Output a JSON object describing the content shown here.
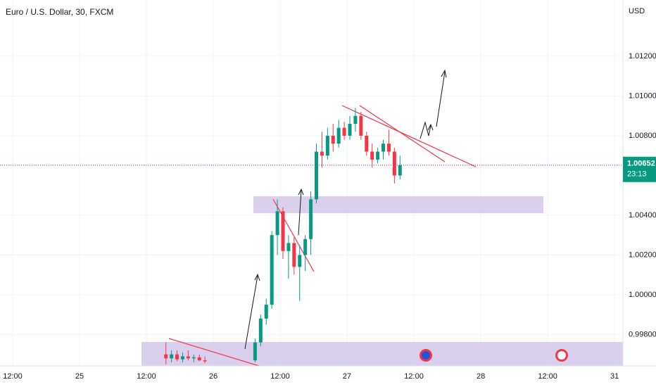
{
  "chart_data": {
    "type": "candlestick",
    "title": "Euro / U.S. Dollar, 30, FXCM",
    "currency": "USD",
    "x": [
      27.5,
      28.5,
      29.5,
      30.5,
      31.5,
      32.5,
      33.5,
      34.5,
      43.5,
      44.5,
      45.5,
      46.5,
      47.5,
      48.5,
      49.5,
      50.5,
      51.5,
      52.5,
      53.5,
      54.5,
      55.5,
      56.5,
      57.5,
      58.5,
      59.5,
      60.5,
      61.5,
      62.5,
      63.5,
      64.5,
      65.5,
      66.5,
      67.5,
      68.5,
      69.5
    ],
    "open": [
      0.997,
      0.9968,
      0.997,
      0.99675,
      0.9969,
      0.9968,
      0.99685,
      0.9967,
      0.9967,
      0.9976,
      0.9988,
      0.9995,
      1.003,
      1.0042,
      1.0022,
      1.0026,
      1.0014,
      1.002,
      1.0028,
      1.0048,
      1.0072,
      1.007,
      1.008,
      1.0076,
      1.0084,
      1.008,
      1.0086,
      1.009,
      1.008,
      1.0072,
      1.0068,
      1.0072,
      1.0076,
      1.0072,
      1.006
    ],
    "high": [
      0.9976,
      0.9972,
      0.9972,
      0.9971,
      0.9972,
      0.997,
      0.997,
      0.9969,
      0.9978,
      0.999,
      0.9998,
      1.0032,
      1.0048,
      1.0044,
      1.003,
      1.0029,
      1.0025,
      1.003,
      1.0052,
      1.0076,
      1.0082,
      1.0084,
      1.0086,
      1.0088,
      1.0087,
      1.009,
      1.0094,
      1.0092,
      1.0082,
      1.0076,
      1.0074,
      1.0078,
      1.0083,
      1.0074,
      1.007
    ],
    "low": [
      0.9965,
      0.9966,
      0.99665,
      0.9966,
      0.9967,
      0.9966,
      0.99665,
      0.99655,
      0.9966,
      0.9974,
      0.9985,
      0.9993,
      1.002,
      1.0018,
      1.0008,
      1.001,
      0.9997,
      1.0012,
      1.002,
      1.0046,
      1.0064,
      1.0068,
      1.0072,
      1.0074,
      1.0078,
      1.0078,
      1.0082,
      1.0078,
      1.007,
      1.0064,
      1.0066,
      1.0068,
      1.007,
      1.0056,
      1.0058
    ],
    "close": [
      0.9968,
      0.997,
      0.99675,
      0.9969,
      0.9968,
      0.99685,
      0.9967,
      0.99665,
      0.9976,
      0.9988,
      0.9995,
      1.003,
      1.0042,
      1.0022,
      1.0026,
      1.0014,
      1.002,
      1.0028,
      1.0048,
      1.0072,
      1.007,
      1.008,
      1.0076,
      1.0084,
      1.008,
      1.0086,
      1.009,
      1.008,
      1.0072,
      1.0068,
      1.0072,
      1.0076,
      1.0072,
      1.006,
      1.00652
    ],
    "up_color": "#089981",
    "down_color": "#f23645",
    "current_price": 1.00652,
    "countdown": "23:13",
    "xlim": [
      -2.27,
      109.5
    ],
    "xticks": [
      {
        "value": 0,
        "label": "12:00"
      },
      {
        "value": 12,
        "label": "25"
      },
      {
        "value": 24,
        "label": "12:00"
      },
      {
        "value": 36,
        "label": "26"
      },
      {
        "value": 48,
        "label": "12:00"
      },
      {
        "value": 60,
        "label": "27"
      },
      {
        "value": 72,
        "label": "12:00"
      },
      {
        "value": 84,
        "label": "28"
      },
      {
        "value": 96,
        "label": "12:00"
      },
      {
        "value": 108,
        "label": "31"
      }
    ],
    "ylim": [
      0.99642,
      1.01483
    ],
    "yticks": [
      {
        "value": 0.998,
        "label": "0.99800"
      },
      {
        "value": 1.0,
        "label": "1.00000"
      },
      {
        "value": 1.002,
        "label": "1.00200"
      },
      {
        "value": 1.004,
        "label": "1.00400"
      },
      {
        "value": 1.008,
        "label": "1.00800"
      },
      {
        "value": 1.01,
        "label": "1.01000"
      },
      {
        "value": 1.012,
        "label": "1.01200"
      }
    ],
    "grid": true
  }
}
